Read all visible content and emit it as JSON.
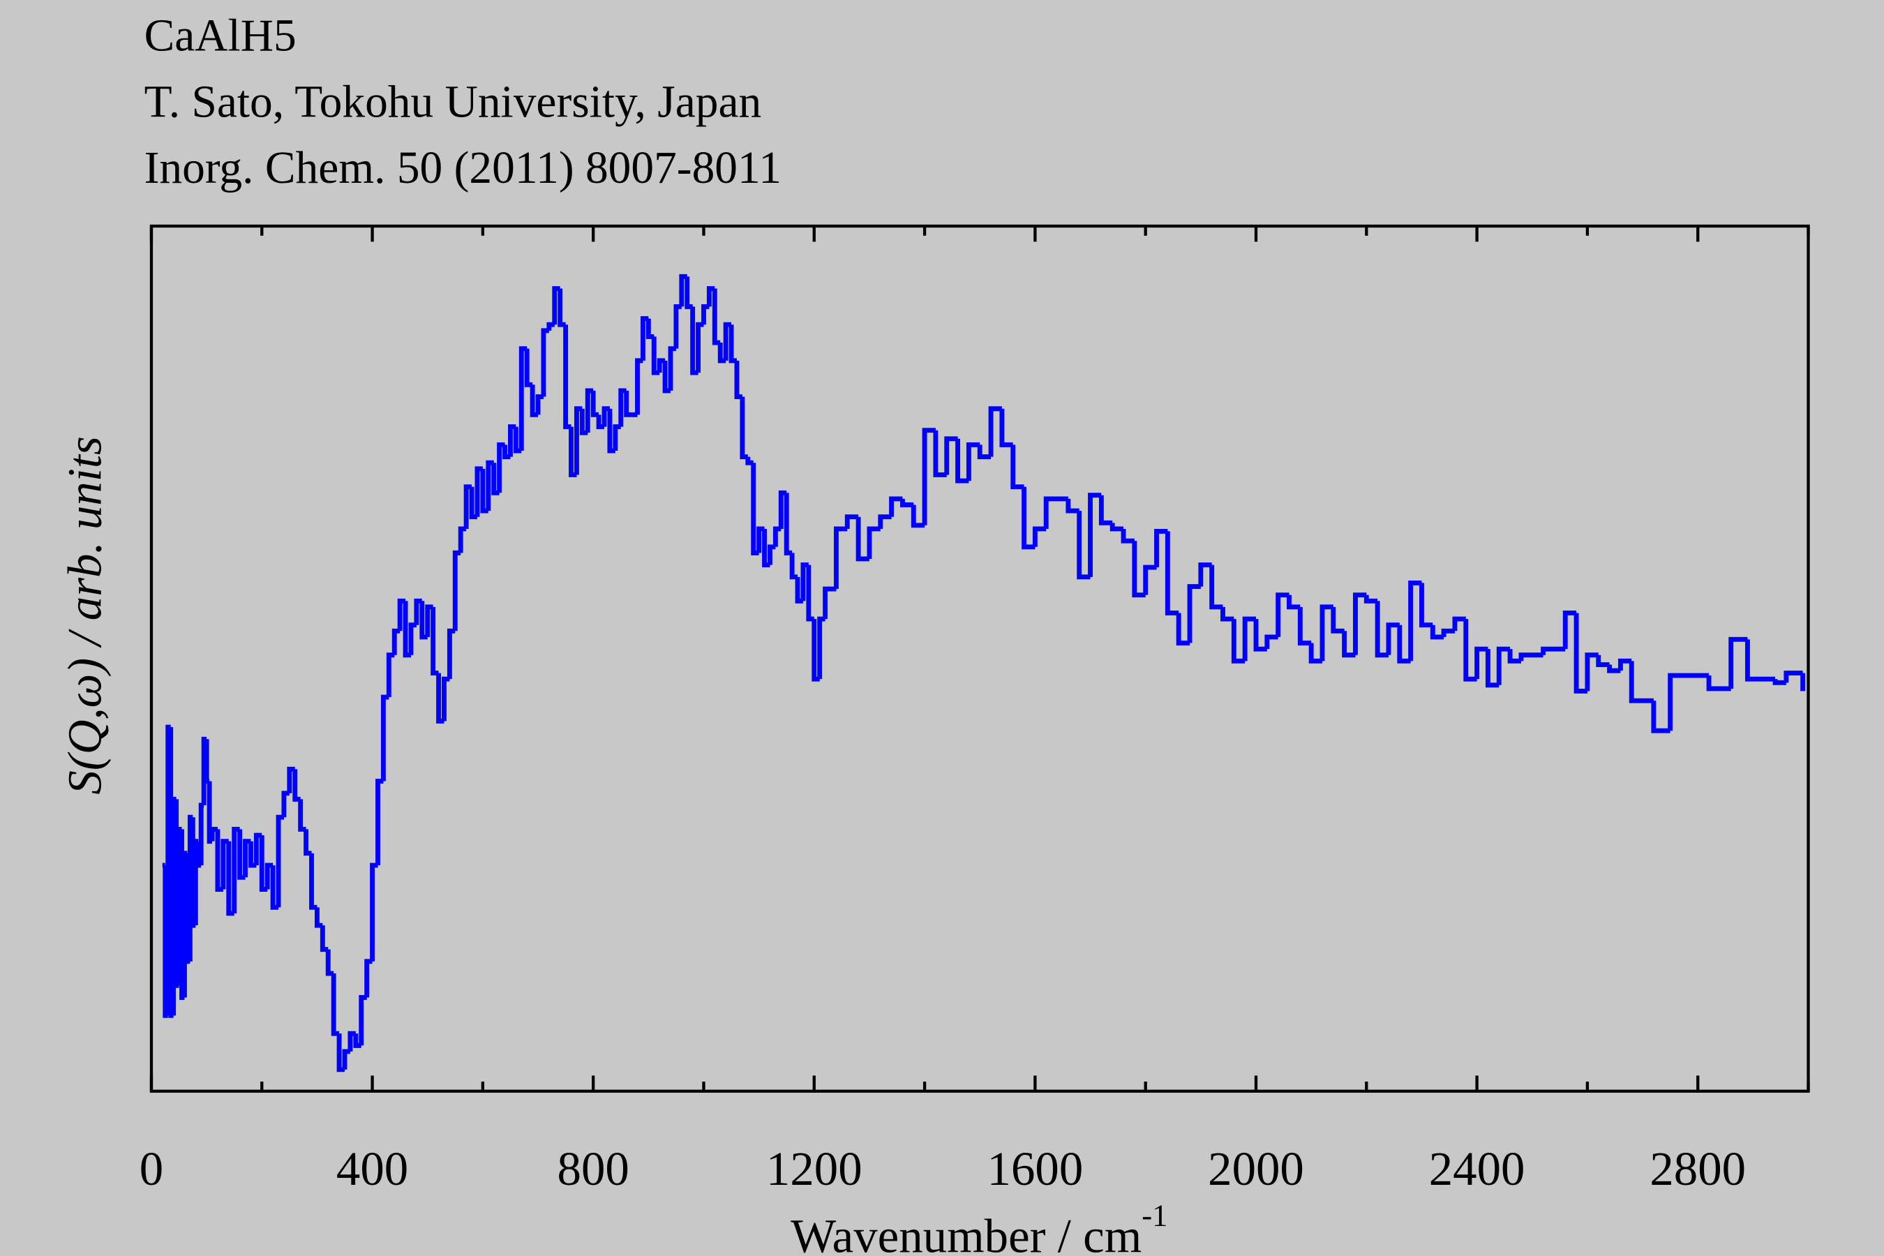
{
  "chart_data": {
    "type": "step",
    "title_lines": [
      "CaAlH5",
      "T. Sato, Tokohu University, Japan",
      "Inorg. Chem. 50 (2011) 8007-8011"
    ],
    "xlabel": "Wavenumber / cm",
    "xlabel_sup": "-1",
    "ylabel": "S(Q,ω) / arb. units",
    "xlim": [
      0,
      3000
    ],
    "ylim": [
      0,
      720
    ],
    "xticks": [
      0,
      400,
      800,
      1200,
      1600,
      2000,
      2400,
      2800
    ],
    "xminorticks": [
      200,
      600,
      1000,
      1400,
      1800,
      2200,
      2600,
      3000
    ],
    "color": "#0000ff",
    "series": [
      {
        "color": "#0000ff",
        "x": [
          20,
          25,
          30,
          35,
          40,
          45,
          50,
          55,
          60,
          65,
          70,
          75,
          80,
          85,
          90,
          95,
          100,
          105,
          110,
          120,
          130,
          140,
          150,
          160,
          170,
          180,
          190,
          200,
          210,
          220,
          230,
          240,
          250,
          260,
          270,
          280,
          290,
          300,
          310,
          320,
          330,
          340,
          350,
          360,
          370,
          380,
          390,
          400,
          410,
          420,
          430,
          440,
          450,
          460,
          470,
          480,
          490,
          500,
          510,
          520,
          530,
          540,
          550,
          560,
          570,
          580,
          590,
          600,
          610,
          620,
          630,
          640,
          650,
          660,
          670,
          680,
          690,
          700,
          710,
          720,
          730,
          740,
          750,
          760,
          770,
          780,
          790,
          800,
          810,
          820,
          830,
          840,
          850,
          860,
          870,
          880,
          890,
          900,
          910,
          920,
          930,
          940,
          950,
          960,
          970,
          980,
          990,
          1000,
          1010,
          1020,
          1030,
          1040,
          1050,
          1060,
          1070,
          1080,
          1090,
          1100,
          1110,
          1120,
          1130,
          1140,
          1150,
          1160,
          1170,
          1180,
          1190,
          1200,
          1210,
          1220,
          1240,
          1260,
          1280,
          1300,
          1320,
          1340,
          1360,
          1380,
          1400,
          1420,
          1440,
          1460,
          1480,
          1500,
          1520,
          1540,
          1560,
          1580,
          1600,
          1620,
          1660,
          1680,
          1700,
          1720,
          1740,
          1760,
          1780,
          1800,
          1820,
          1840,
          1860,
          1880,
          1900,
          1920,
          1940,
          1960,
          1980,
          2000,
          2020,
          2040,
          2060,
          2080,
          2100,
          2120,
          2140,
          2160,
          2180,
          2200,
          2220,
          2240,
          2260,
          2280,
          2300,
          2320,
          2340,
          2360,
          2380,
          2400,
          2420,
          2440,
          2460,
          2480,
          2520,
          2560,
          2580,
          2600,
          2620,
          2640,
          2660,
          2680,
          2720,
          2750,
          2820,
          2860,
          2890,
          2940,
          2960,
          2990
        ],
        "values": [
          188,
          63,
          303,
          63,
          243,
          88,
          218,
          78,
          198,
          108,
          228,
          138,
          208,
          188,
          238,
          293,
          258,
          208,
          218,
          168,
          208,
          148,
          218,
          178,
          208,
          188,
          213,
          168,
          188,
          153,
          228,
          248,
          268,
          243,
          218,
          198,
          153,
          138,
          118,
          98,
          48,
          18,
          33,
          48,
          38,
          78,
          108,
          188,
          258,
          328,
          363,
          383,
          408,
          363,
          388,
          408,
          378,
          403,
          348,
          308,
          343,
          383,
          448,
          468,
          503,
          478,
          518,
          483,
          523,
          498,
          538,
          528,
          553,
          533,
          618,
          588,
          563,
          578,
          633,
          638,
          668,
          638,
          553,
          513,
          568,
          548,
          583,
          563,
          553,
          568,
          533,
          553,
          583,
          563,
          563,
          608,
          643,
          628,
          598,
          608,
          583,
          618,
          653,
          678,
          653,
          598,
          638,
          653,
          668,
          623,
          608,
          638,
          608,
          578,
          528,
          523,
          448,
          468,
          438,
          453,
          468,
          498,
          448,
          428,
          408,
          438,
          393,
          343,
          393,
          418,
          468,
          478,
          443,
          468,
          478,
          493,
          488,
          471,
          550,
          513,
          543,
          508,
          538,
          528,
          568,
          538,
          503,
          453,
          468,
          493,
          483,
          428,
          496,
          473,
          468,
          458,
          413,
          436,
          466,
          398,
          373,
          420,
          438,
          403,
          393,
          358,
          393,
          368,
          378,
          413,
          403,
          373,
          358,
          403,
          383,
          363,
          413,
          408,
          363,
          388,
          358,
          423,
          388,
          378,
          383,
          393,
          343,
          368,
          338,
          368,
          358,
          363,
          368,
          398,
          333,
          363,
          355,
          350,
          358,
          325,
          300,
          346,
          335,
          376,
          343,
          340,
          348,
          333
        ]
      }
    ]
  }
}
